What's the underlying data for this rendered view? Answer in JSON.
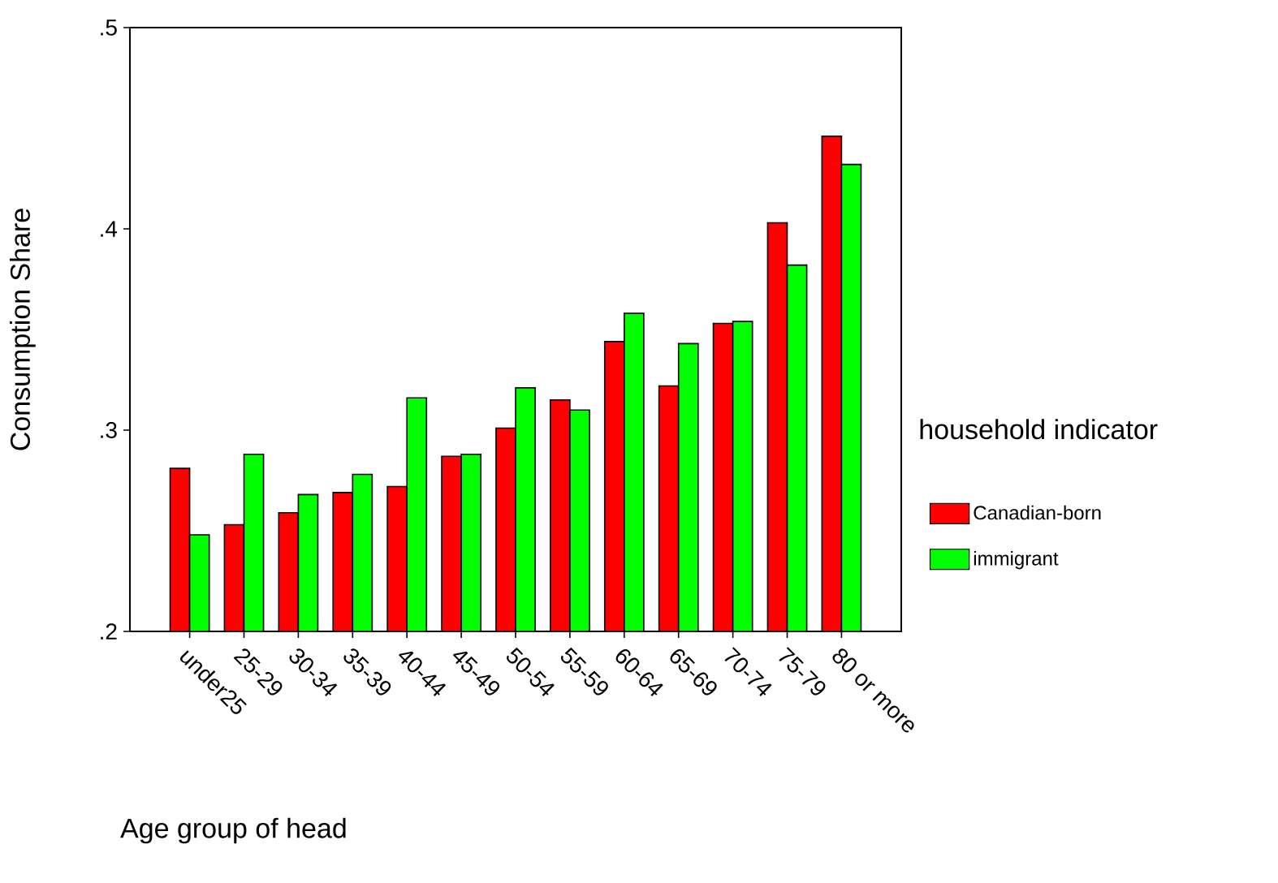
{
  "chart_data": {
    "type": "bar",
    "xlabel": "Age group of head",
    "ylabel": "Consumption Share",
    "legend_title": "household indicator",
    "categories": [
      "under25",
      "25-29",
      "30-34",
      "35-39",
      "40-44",
      "45-49",
      "50-54",
      "55-59",
      "60-64",
      "65-69",
      "70-74",
      "75-79",
      "80 or more"
    ],
    "series": [
      {
        "name": "Canadian-born",
        "color": "#ff0000",
        "values": [
          0.281,
          0.253,
          0.259,
          0.269,
          0.272,
          0.287,
          0.301,
          0.315,
          0.344,
          0.322,
          0.353,
          0.403,
          0.446
        ]
      },
      {
        "name": "immigrant",
        "color": "#00ff00",
        "values": [
          0.248,
          0.288,
          0.268,
          0.278,
          0.316,
          0.288,
          0.321,
          0.31,
          0.358,
          0.343,
          0.354,
          0.382,
          0.432
        ]
      }
    ],
    "ylim": [
      0.2,
      0.5
    ],
    "yticks": [
      {
        "value": 0.2,
        "label": ".2"
      },
      {
        "value": 0.3,
        "label": ".3"
      },
      {
        "value": 0.4,
        "label": ".4"
      },
      {
        "value": 0.5,
        "label": ".5"
      }
    ],
    "grid": false,
    "legend": "right"
  }
}
